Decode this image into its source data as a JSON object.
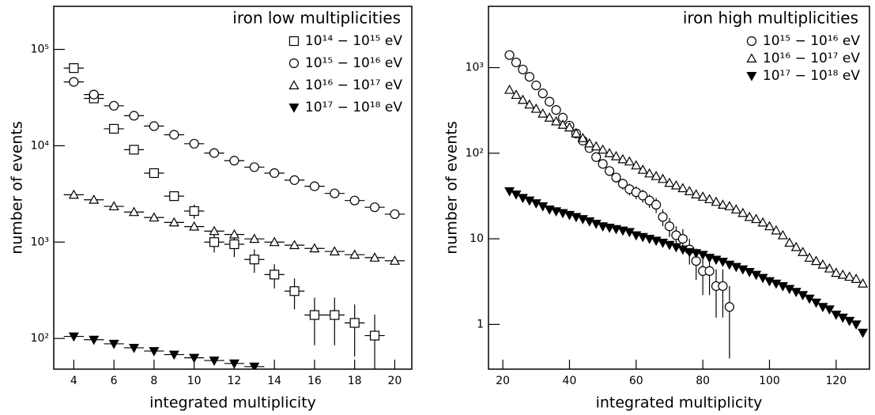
{
  "chart_data": [
    {
      "type": "scatter",
      "title": "iron low multiplicities",
      "xlabel": "integrated multiplicity",
      "ylabel": "number of events",
      "xlim": [
        3,
        20.85
      ],
      "ylim": [
        48,
        280000
      ],
      "ylog": true,
      "legend": "upper right",
      "xticks": [
        4,
        6,
        8,
        10,
        12,
        14,
        16,
        18,
        20
      ],
      "yticks": [
        {
          "value": 100,
          "label": "10²"
        },
        {
          "value": 1000,
          "label": "10³"
        },
        {
          "value": 10000,
          "label": "10⁴"
        },
        {
          "value": 100000,
          "label": "10⁵"
        }
      ],
      "series": [
        {
          "name": "10¹⁴ − 10¹⁵ eV",
          "marker": "square",
          "color": "#000",
          "x": [
            4,
            5,
            6,
            7,
            8,
            9,
            10,
            11,
            12,
            13,
            14,
            15,
            16,
            17,
            18,
            19
          ],
          "values": [
            64000,
            31000,
            15000,
            9100,
            5200,
            3000,
            2100,
            1000,
            950,
            660,
            460,
            310,
            175,
            175,
            145,
            107
          ],
          "errors": [
            2000,
            1300,
            800,
            600,
            450,
            300,
            350,
            220,
            250,
            180,
            130,
            110,
            90,
            90,
            80,
            70
          ]
        },
        {
          "name": "10¹⁵ − 10¹⁶ eV",
          "marker": "circle",
          "color": "#000",
          "x": [
            4,
            5,
            6,
            7,
            8,
            9,
            10,
            11,
            12,
            13,
            14,
            15,
            16,
            17,
            18,
            19,
            20
          ],
          "values": [
            46000,
            34000,
            26000,
            20500,
            16000,
            13000,
            10500,
            8400,
            7000,
            6000,
            5200,
            4400,
            3800,
            3200,
            2700,
            2300,
            1950
          ]
        },
        {
          "name": "10¹⁶ − 10¹⁷ eV",
          "marker": "triangle",
          "color": "#000",
          "x": [
            4,
            5,
            6,
            7,
            8,
            9,
            10,
            11,
            12,
            13,
            14,
            15,
            16,
            17,
            18,
            19,
            20
          ],
          "values": [
            3100,
            2750,
            2350,
            2050,
            1800,
            1600,
            1450,
            1300,
            1200,
            1080,
            1000,
            930,
            860,
            800,
            740,
            690,
            640
          ]
        },
        {
          "name": "10¹⁷ − 10¹⁸ eV",
          "marker": "triangle-down-filled",
          "color": "#000",
          "x": [
            4,
            5,
            6,
            7,
            8,
            9,
            10,
            11,
            12,
            13
          ],
          "values": [
            105,
            97,
            88,
            80,
            74,
            68,
            63,
            59,
            55,
            51
          ]
        }
      ]
    },
    {
      "type": "scatter",
      "title": "iron high multiplicities",
      "xlabel": "integrated multiplicity",
      "ylabel": "number of events",
      "xlim": [
        15.7,
        130
      ],
      "ylim": [
        0.3,
        5200
      ],
      "ylog": true,
      "legend": "upper right",
      "xticks": [
        20,
        40,
        60,
        80,
        100,
        120
      ],
      "yticks": [
        1,
        10,
        {
          "value": 100,
          "label": "10²"
        },
        {
          "value": 1000,
          "label": "10³"
        }
      ],
      "series": [
        {
          "name": "10¹⁵ − 10¹⁶ eV",
          "marker": "circle",
          "color": "#000",
          "x": [
            22,
            24,
            26,
            28,
            30,
            32,
            34,
            36,
            38,
            40,
            42,
            44,
            46,
            48,
            50,
            52,
            54,
            56,
            58,
            60,
            62,
            64,
            66,
            68,
            70,
            72,
            74,
            76,
            78,
            80,
            82,
            84,
            86,
            88
          ],
          "values": [
            1400,
            1150,
            950,
            780,
            620,
            500,
            400,
            320,
            260,
            210,
            170,
            140,
            115,
            90,
            75,
            62,
            52,
            44,
            38,
            35,
            32,
            28,
            25,
            18,
            14,
            11,
            10,
            7.5,
            5.5,
            4.2,
            4.2,
            2.8,
            2.8,
            1.6
          ],
          "errors": [
            40,
            35,
            30,
            28,
            25,
            22,
            20,
            18,
            16,
            14,
            13,
            12,
            11,
            10,
            9,
            8,
            7,
            6.5,
            6,
            6,
            5.5,
            5,
            5,
            4,
            3.5,
            3,
            3,
            2.5,
            2.2,
            2,
            2,
            1.6,
            1.6,
            1.2
          ]
        },
        {
          "name": "10¹⁶ − 10¹⁷ eV",
          "marker": "triangle",
          "color": "#000",
          "x": [
            22,
            24,
            26,
            28,
            30,
            32,
            34,
            36,
            38,
            40,
            42,
            44,
            46,
            48,
            50,
            52,
            54,
            56,
            58,
            60,
            62,
            64,
            66,
            68,
            70,
            72,
            74,
            76,
            78,
            80,
            82,
            84,
            86,
            88,
            90,
            92,
            94,
            96,
            98,
            100,
            102,
            104,
            106,
            108,
            110,
            112,
            114,
            116,
            118,
            120,
            122,
            124,
            126,
            128
          ],
          "values": [
            550,
            480,
            420,
            370,
            330,
            290,
            260,
            235,
            215,
            200,
            170,
            150,
            130,
            120,
            110,
            100,
            92,
            85,
            80,
            72,
            64,
            58,
            54,
            50,
            45,
            42,
            39,
            36,
            33,
            31,
            29,
            27,
            25,
            24,
            22,
            20,
            18,
            17,
            15.5,
            14,
            12.5,
            11,
            9,
            8,
            7,
            6,
            5.5,
            5,
            4.5,
            4,
            3.8,
            3.6,
            3.4,
            3
          ]
        },
        {
          "name": "10¹⁷ − 10¹⁸ eV",
          "marker": "triangle-down-filled",
          "color": "#000",
          "x": [
            22,
            24,
            26,
            28,
            30,
            32,
            34,
            36,
            38,
            40,
            42,
            44,
            46,
            48,
            50,
            52,
            54,
            56,
            58,
            60,
            62,
            64,
            66,
            68,
            70,
            72,
            74,
            76,
            78,
            80,
            82,
            84,
            86,
            88,
            90,
            92,
            94,
            96,
            98,
            100,
            102,
            104,
            106,
            108,
            110,
            112,
            114,
            116,
            118,
            120,
            122,
            124,
            126,
            128
          ],
          "values": [
            36,
            33,
            30,
            28,
            26,
            24,
            22,
            21,
            20,
            19,
            18,
            17,
            16,
            15,
            14,
            13.5,
            13,
            12.5,
            12,
            11,
            10.5,
            10,
            9.5,
            9,
            8.5,
            8,
            7.5,
            7,
            6.8,
            6.5,
            6,
            5.7,
            5.4,
            5,
            4.7,
            4.4,
            4.1,
            3.8,
            3.5,
            3.2,
            3,
            2.8,
            2.6,
            2.4,
            2.2,
            2,
            1.8,
            1.6,
            1.5,
            1.3,
            1.2,
            1.1,
            1,
            0.8
          ]
        }
      ]
    }
  ]
}
